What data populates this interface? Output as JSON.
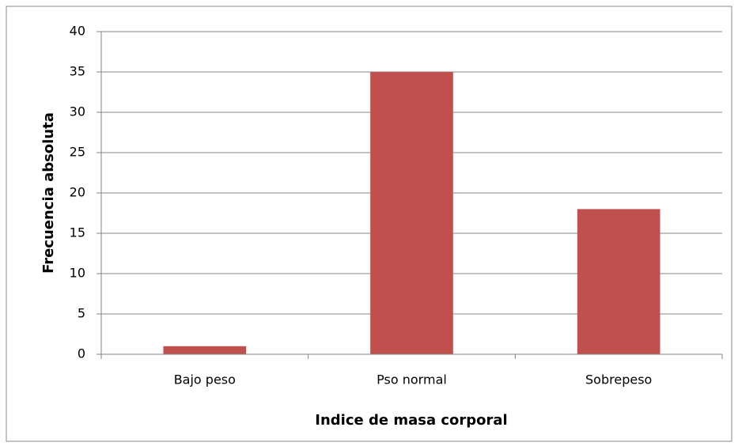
{
  "chart_data": {
    "type": "bar",
    "categories": [
      "Bajo peso",
      "Pso normal",
      "Sobrepeso"
    ],
    "values": [
      1,
      35,
      18
    ],
    "color": "#c0504d",
    "xlabel": "Indice de masa corporal",
    "ylabel": "Frecuencia absoluta",
    "ylim": [
      0,
      40
    ],
    "yticks": [
      0,
      5,
      10,
      15,
      20,
      25,
      30,
      35,
      40
    ],
    "grid": true
  }
}
